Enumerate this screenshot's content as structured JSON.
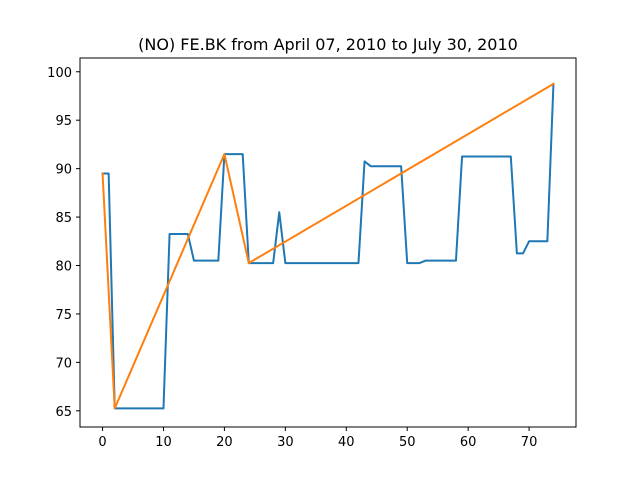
{
  "chart_data": {
    "type": "line",
    "title": "(NO) FE.BK from April 07, 2010 to July 30, 2010",
    "xlabel": "",
    "ylabel": "",
    "xlim": [
      -3.7,
      77.7
    ],
    "ylim": [
      63.33,
      101.42
    ],
    "xticks": [
      0,
      10,
      20,
      30,
      40,
      50,
      60,
      70
    ],
    "yticks": [
      65,
      70,
      75,
      80,
      85,
      90,
      95,
      100
    ],
    "grid": false,
    "series": [
      {
        "color": "#1f77b4",
        "x": [
          0,
          1,
          2,
          3,
          4,
          5,
          6,
          7,
          8,
          9,
          10,
          11,
          12,
          13,
          14,
          15,
          16,
          17,
          18,
          19,
          20,
          21,
          22,
          23,
          24,
          25,
          26,
          27,
          28,
          29,
          30,
          31,
          32,
          33,
          34,
          35,
          36,
          37,
          38,
          39,
          40,
          41,
          42,
          43,
          44,
          45,
          46,
          47,
          48,
          49,
          50,
          51,
          52,
          53,
          54,
          55,
          56,
          57,
          58,
          59,
          60,
          61,
          62,
          63,
          64,
          65,
          66,
          67,
          68,
          69,
          70,
          71,
          72,
          73,
          74
        ],
        "y": [
          89.5,
          89.5,
          65.25,
          65.25,
          65.25,
          65.25,
          65.25,
          65.25,
          65.25,
          65.25,
          65.25,
          83.25,
          83.25,
          83.25,
          83.25,
          80.5,
          80.5,
          80.5,
          80.5,
          80.5,
          91.5,
          91.5,
          91.5,
          91.5,
          80.25,
          80.25,
          80.25,
          80.25,
          80.25,
          85.5,
          80.25,
          80.25,
          80.25,
          80.25,
          80.25,
          80.25,
          80.25,
          80.25,
          80.25,
          80.25,
          80.25,
          80.25,
          80.25,
          90.75,
          90.25,
          90.25,
          90.25,
          90.25,
          90.25,
          90.25,
          80.25,
          80.25,
          80.25,
          80.5,
          80.5,
          80.5,
          80.5,
          80.5,
          80.5,
          91.25,
          91.25,
          91.25,
          91.25,
          91.25,
          91.25,
          91.25,
          91.25,
          91.25,
          81.25,
          81.25,
          82.5,
          82.5,
          82.5,
          82.5,
          98.75
        ]
      },
      {
        "color": "#ff7f0e",
        "x": [
          0,
          2,
          20,
          24,
          74
        ],
        "y": [
          89.5,
          65.25,
          91.5,
          80.25,
          98.75
        ]
      }
    ]
  }
}
